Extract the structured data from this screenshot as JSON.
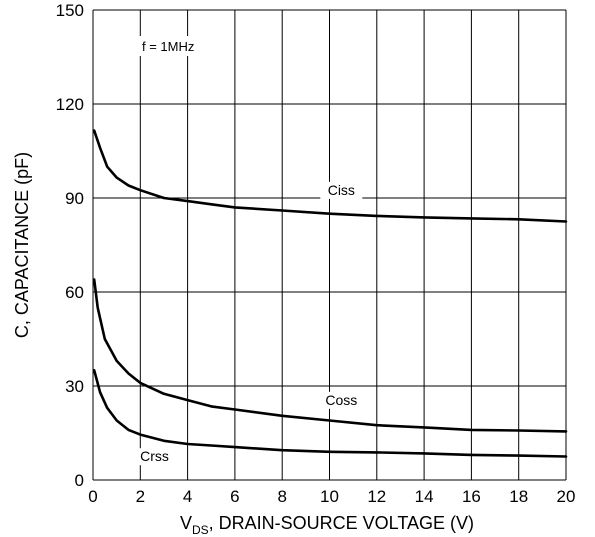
{
  "chart_data": {
    "type": "line",
    "title": "",
    "annotation": "f = 1MHz",
    "xlabel_main": "V",
    "xlabel_sub": "DS",
    "xlabel_rest": ", DRAIN-SOURCE VOLTAGE (V)",
    "ylabel": "C, CAPACITANCE (pF)",
    "xlim": [
      0,
      20
    ],
    "ylim": [
      0,
      150
    ],
    "x_ticks": [
      0,
      2,
      4,
      6,
      8,
      10,
      12,
      14,
      16,
      18,
      20
    ],
    "y_ticks": [
      0,
      30,
      60,
      90,
      120,
      150
    ],
    "grid": true,
    "series": [
      {
        "name": "Ciss",
        "label_at": [
          10.5,
          91
        ],
        "x": [
          0.05,
          0.3,
          0.6,
          1.0,
          1.5,
          2.0,
          3.0,
          4.0,
          5.0,
          6.0,
          8.0,
          10.0,
          12.0,
          14.0,
          16.0,
          18.0,
          20.0
        ],
        "y": [
          111.5,
          106,
          100,
          96.5,
          94,
          92.5,
          90,
          89,
          88,
          87,
          86,
          85,
          84.3,
          83.8,
          83.5,
          83.2,
          82.5
        ]
      },
      {
        "name": "Coss",
        "label_at": [
          10.5,
          24
        ],
        "x": [
          0.05,
          0.2,
          0.5,
          1.0,
          1.5,
          2.0,
          3.0,
          4.0,
          5.0,
          6.0,
          8.0,
          10.0,
          12.0,
          14.0,
          16.0,
          18.0,
          20.5
        ],
        "y": [
          64,
          55,
          45,
          38,
          34,
          31,
          27.5,
          25.5,
          23.5,
          22.5,
          20.5,
          19,
          17.5,
          16.8,
          16,
          15.8,
          15.5
        ]
      },
      {
        "name": "Crss",
        "label_at": [
          2.6,
          6
        ],
        "x": [
          0.05,
          0.3,
          0.6,
          1.0,
          1.5,
          2.0,
          3.0,
          4.0,
          5.0,
          6.0,
          8.0,
          10.0,
          12.0,
          14.0,
          16.0,
          18.0,
          20.5
        ],
        "y": [
          35,
          28,
          23,
          19,
          16,
          14.5,
          12.5,
          11.5,
          11,
          10.5,
          9.5,
          9,
          8.8,
          8.5,
          8,
          7.8,
          7.5
        ]
      }
    ]
  }
}
